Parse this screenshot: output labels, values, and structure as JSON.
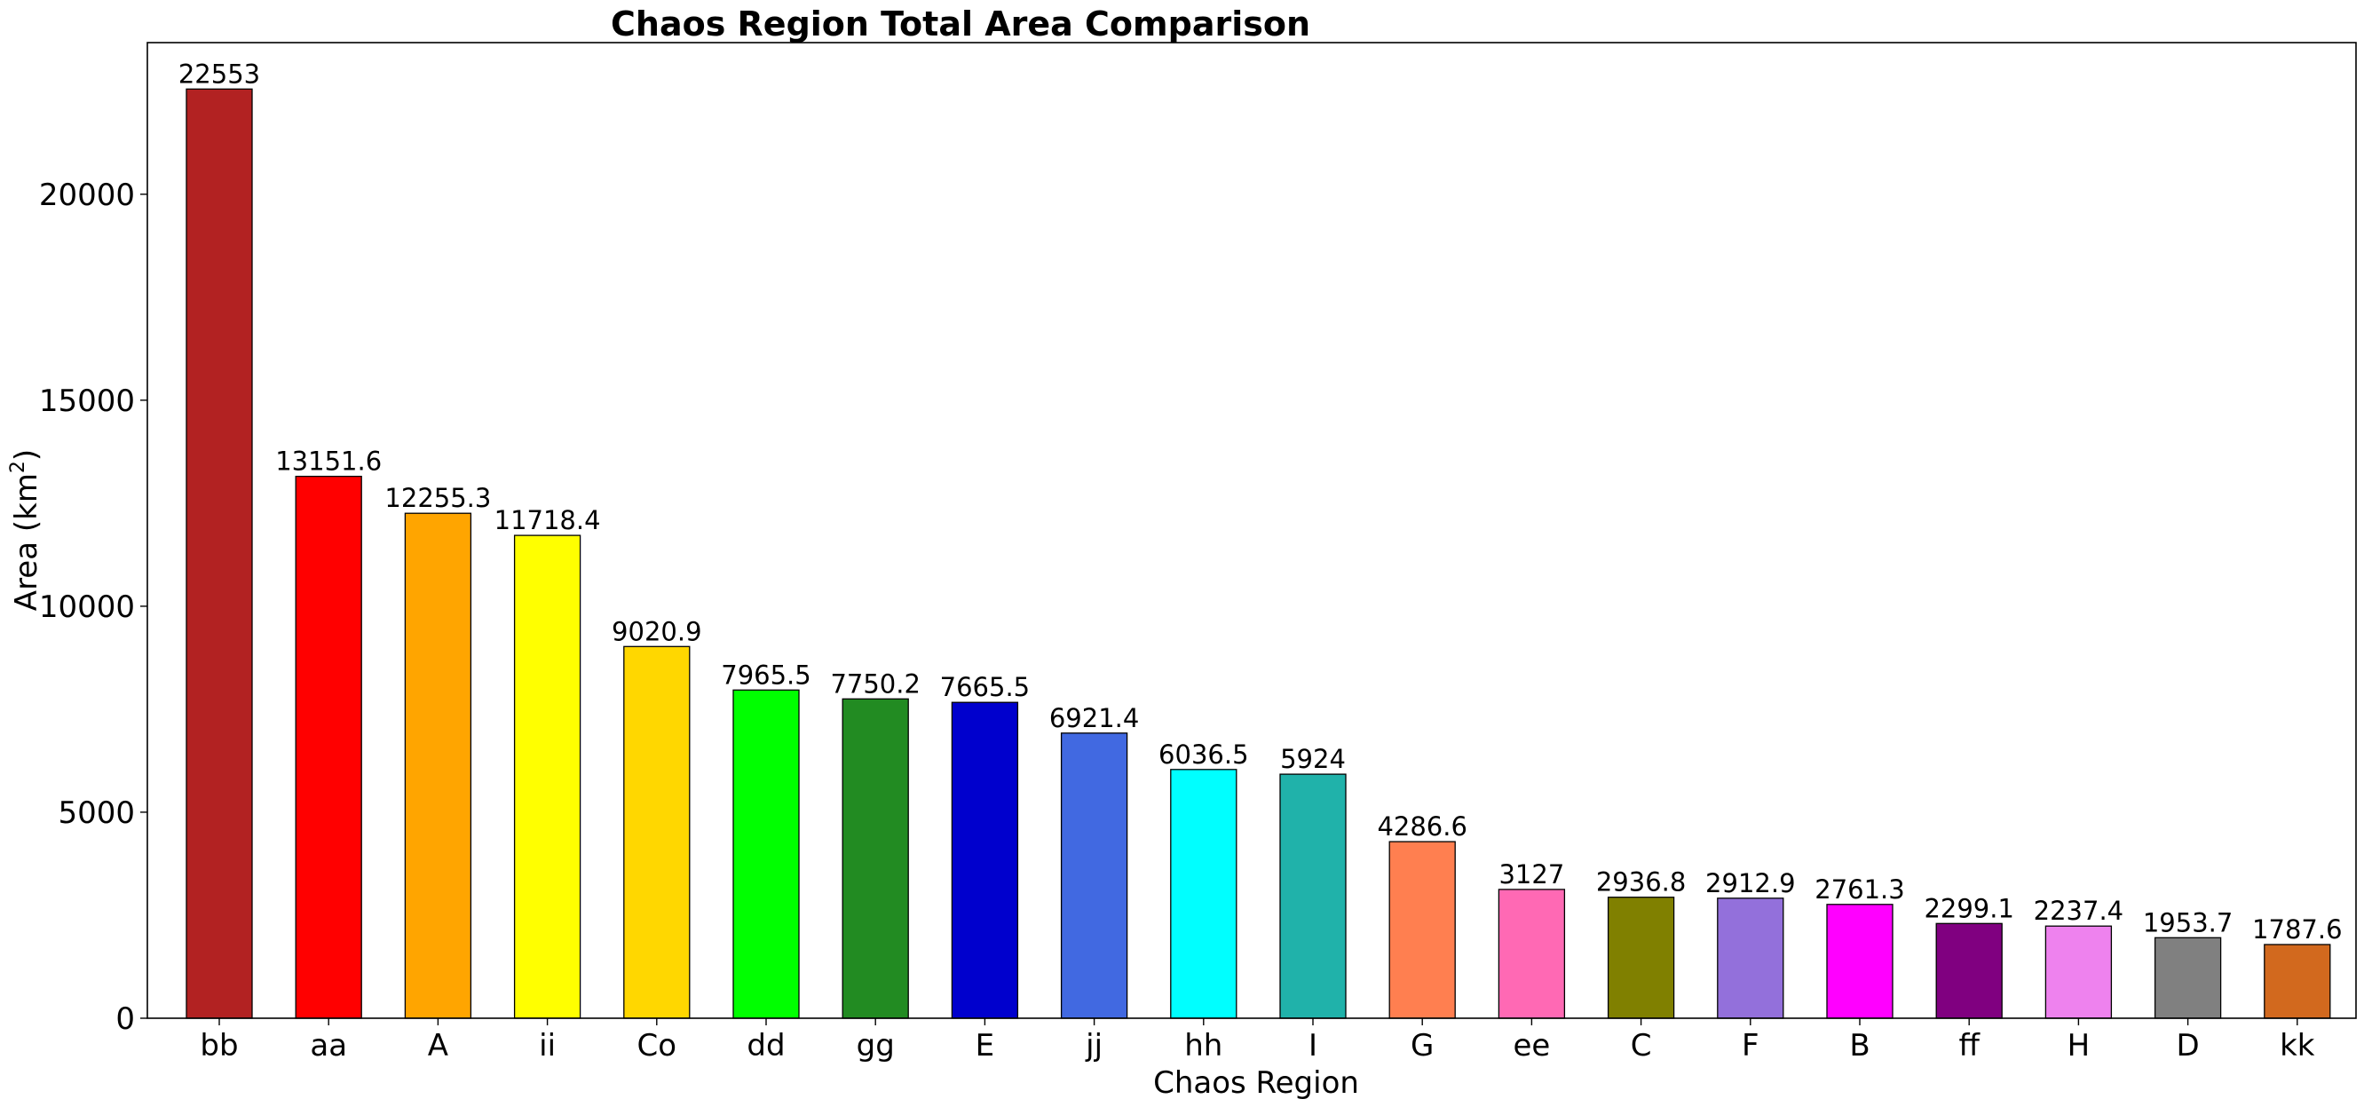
{
  "chart_data": {
    "type": "bar",
    "title": "Chaos Region Total Area Comparison",
    "xlabel": "Chaos Region",
    "ylabel": "Area (km²)",
    "ylabel_base": "Area (km",
    "ylabel_sup": "2",
    "ylabel_end": ")",
    "ylim": [
      0,
      23680
    ],
    "yticks": [
      0,
      5000,
      10000,
      15000,
      20000
    ],
    "grid": false,
    "categories": [
      "bb",
      "aa",
      "A",
      "ii",
      "Co",
      "dd",
      "gg",
      "E",
      "jj",
      "hh",
      "I",
      "G",
      "ee",
      "C",
      "F",
      "B",
      "ff",
      "H",
      "D",
      "kk"
    ],
    "values": [
      22553,
      13151.6,
      12255.3,
      11718.4,
      9020.9,
      7965.5,
      7750.2,
      7665.5,
      6921.4,
      6036.5,
      5924,
      4286.6,
      3127,
      2936.8,
      2912.9,
      2761.3,
      2299.1,
      2237.4,
      1953.7,
      1787.6
    ],
    "value_labels": [
      "22553",
      "13151.6",
      "12255.3",
      "11718.4",
      "9020.9",
      "7965.5",
      "7750.2",
      "7665.5",
      "6921.4",
      "6036.5",
      "5924",
      "4286.6",
      "3127",
      "2936.8",
      "2912.9",
      "2761.3",
      "2299.1",
      "2237.4",
      "1953.7",
      "1787.6"
    ],
    "colors": [
      "#b22222",
      "#ff0000",
      "#ffa500",
      "#ffff00",
      "#ffd700",
      "#00ff00",
      "#228b22",
      "#0000cd",
      "#4169e1",
      "#00ffff",
      "#20b2aa",
      "#ff7f50",
      "#ff69b4",
      "#808000",
      "#9370db",
      "#ff00ff",
      "#800080",
      "#ee82ee",
      "#808080",
      "#d2691e"
    ],
    "edge_color": "#000000"
  }
}
